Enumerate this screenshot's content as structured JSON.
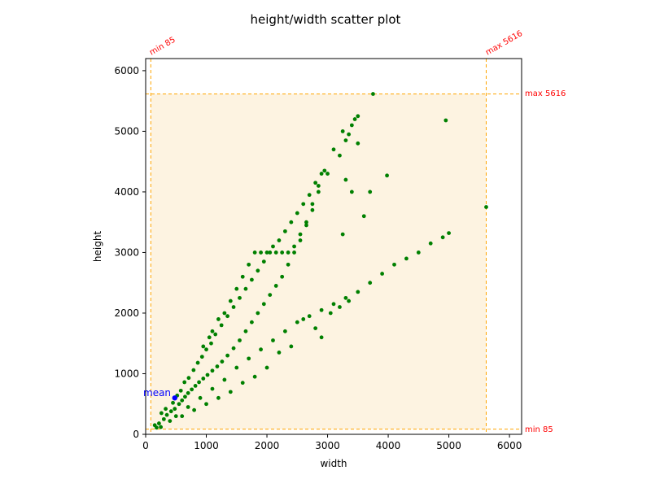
{
  "chart_data": {
    "type": "scatter",
    "title": "height/width scatter plot",
    "xlabel": "width",
    "ylabel": "height",
    "xlim": [
      0,
      6200
    ],
    "ylim": [
      0,
      6200
    ],
    "grid": false,
    "x_ticks": [
      0,
      1000,
      2000,
      3000,
      4000,
      5000,
      6000
    ],
    "y_ticks": [
      0,
      1000,
      2000,
      3000,
      4000,
      5000,
      6000
    ],
    "colors": {
      "points": "#008000",
      "range_fill": "#fdf3e1",
      "range_line": "#ffa500",
      "annotation": "#ff0000",
      "mean": "#0000ff"
    },
    "range": {
      "min": 85,
      "max": 5616
    },
    "annotations": {
      "x_min": "min 85",
      "x_max": "max 5616",
      "y_max": "max 5616",
      "y_min": "min 85"
    },
    "mean": {
      "label": "mean",
      "x": 480,
      "y": 600
    },
    "sample_points": [
      [
        150,
        150
      ],
      [
        220,
        180
      ],
      [
        300,
        250
      ],
      [
        350,
        320
      ],
      [
        420,
        380
      ],
      [
        480,
        420
      ],
      [
        550,
        500
      ],
      [
        600,
        560
      ],
      [
        650,
        620
      ],
      [
        700,
        680
      ],
      [
        760,
        740
      ],
      [
        820,
        800
      ],
      [
        880,
        860
      ],
      [
        950,
        920
      ],
      [
        1020,
        980
      ],
      [
        1100,
        1050
      ],
      [
        1180,
        1120
      ],
      [
        1260,
        1200
      ],
      [
        1350,
        1300
      ],
      [
        1450,
        1420
      ],
      [
        1550,
        1550
      ],
      [
        1650,
        1700
      ],
      [
        1750,
        1850
      ],
      [
        1850,
        2000
      ],
      [
        1950,
        2150
      ],
      [
        2050,
        2300
      ],
      [
        2150,
        2450
      ],
      [
        2250,
        2600
      ],
      [
        2350,
        2800
      ],
      [
        2450,
        3000
      ],
      [
        2550,
        3200
      ],
      [
        2650,
        3450
      ],
      [
        2750,
        3700
      ],
      [
        2850,
        4000
      ],
      [
        3000,
        4300
      ],
      [
        3200,
        4600
      ],
      [
        3350,
        4950
      ],
      [
        3500,
        5250
      ],
      [
        3750,
        5616
      ],
      [
        3500,
        4800
      ],
      [
        3250,
        5000
      ],
      [
        3400,
        5100
      ],
      [
        500,
        300
      ],
      [
        700,
        450
      ],
      [
        900,
        600
      ],
      [
        1100,
        750
      ],
      [
        1300,
        900
      ],
      [
        1500,
        1100
      ],
      [
        1700,
        1250
      ],
      [
        1900,
        1400
      ],
      [
        2100,
        1550
      ],
      [
        2300,
        1700
      ],
      [
        2500,
        1850
      ],
      [
        2700,
        1950
      ],
      [
        2900,
        2050
      ],
      [
        3100,
        2150
      ],
      [
        3300,
        2250
      ],
      [
        3500,
        2350
      ],
      [
        3700,
        2500
      ],
      [
        3900,
        2650
      ],
      [
        4100,
        2800
      ],
      [
        4300,
        2900
      ],
      [
        4500,
        3000
      ],
      [
        4700,
        3150
      ],
      [
        4900,
        3250
      ],
      [
        5000,
        3320
      ],
      [
        5616,
        3750
      ],
      [
        4950,
        5180
      ],
      [
        3980,
        4270
      ],
      [
        3300,
        4200
      ],
      [
        3400,
        4000
      ],
      [
        3700,
        4000
      ],
      [
        3250,
        3300
      ],
      [
        3600,
        3600
      ],
      [
        3050,
        2000
      ],
      [
        3200,
        2100
      ],
      [
        3350,
        2200
      ],
      [
        2600,
        1900
      ],
      [
        2800,
        1750
      ],
      [
        2900,
        1600
      ],
      [
        2200,
        1350
      ],
      [
        2400,
        1450
      ],
      [
        2000,
        1100
      ],
      [
        1800,
        950
      ],
      [
        1600,
        850
      ],
      [
        1400,
        700
      ],
      [
        1200,
        600
      ],
      [
        1000,
        500
      ],
      [
        800,
        400
      ],
      [
        600,
        300
      ],
      [
        400,
        220
      ],
      [
        250,
        120
      ],
      [
        180,
        110
      ],
      [
        260,
        350
      ],
      [
        330,
        420
      ],
      [
        450,
        520
      ],
      [
        520,
        640
      ],
      [
        580,
        720
      ],
      [
        640,
        860
      ],
      [
        710,
        930
      ],
      [
        790,
        1060
      ],
      [
        860,
        1180
      ],
      [
        930,
        1280
      ],
      [
        1000,
        1400
      ],
      [
        1080,
        1500
      ],
      [
        1150,
        1650
      ],
      [
        1250,
        1800
      ],
      [
        1350,
        1950
      ],
      [
        1450,
        2100
      ],
      [
        1550,
        2250
      ],
      [
        1650,
        2400
      ],
      [
        1750,
        2550
      ],
      [
        1850,
        2700
      ],
      [
        1950,
        2850
      ],
      [
        2050,
        3000
      ],
      [
        2150,
        3000
      ],
      [
        2250,
        3000
      ],
      [
        2350,
        3000
      ],
      [
        2450,
        3100
      ],
      [
        2550,
        3300
      ],
      [
        2650,
        3500
      ],
      [
        2750,
        3800
      ],
      [
        2850,
        4100
      ],
      [
        2950,
        4350
      ],
      [
        3100,
        4700
      ],
      [
        3300,
        4850
      ],
      [
        3450,
        5200
      ],
      [
        950,
        1450
      ],
      [
        1050,
        1600
      ],
      [
        1100,
        1700
      ],
      [
        1200,
        1900
      ],
      [
        1300,
        2000
      ],
      [
        1400,
        2200
      ],
      [
        1500,
        2400
      ],
      [
        1600,
        2600
      ],
      [
        1700,
        2800
      ],
      [
        1800,
        3000
      ],
      [
        1900,
        3000
      ],
      [
        2000,
        3000
      ],
      [
        2100,
        3100
      ],
      [
        2200,
        3200
      ],
      [
        2300,
        3350
      ],
      [
        2400,
        3500
      ],
      [
        2500,
        3650
      ],
      [
        2600,
        3800
      ],
      [
        2700,
        3950
      ],
      [
        2800,
        4150
      ],
      [
        2900,
        4300
      ]
    ]
  }
}
